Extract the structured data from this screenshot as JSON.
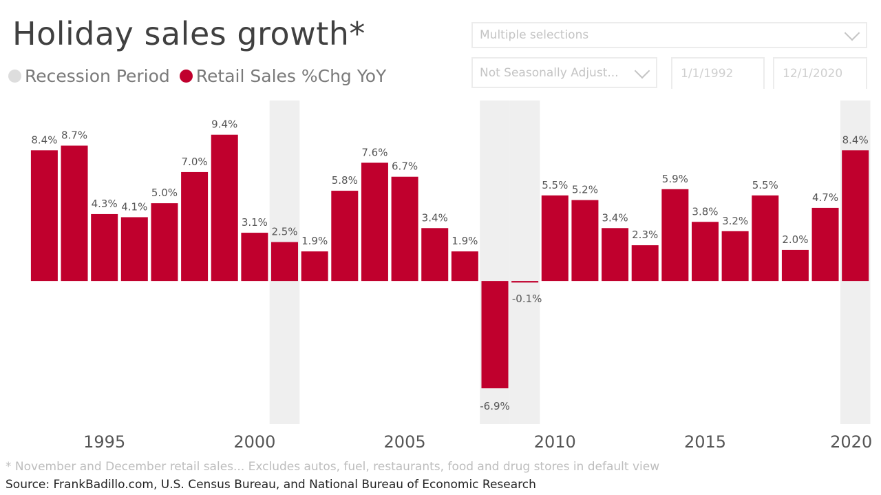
{
  "title": "Holiday sales growth*",
  "legend": {
    "recession_label": "Recession Period",
    "sales_label": "Retail Sales %Chg YoY"
  },
  "colors": {
    "bar": "#c0002d",
    "recession": "#efefef",
    "recession_dot": "#dddddd",
    "text": "#555555"
  },
  "slicers": {
    "category": "Multiple selections",
    "adjustment": "Not Seasonally Adjust...",
    "start_date": "1/1/1992",
    "end_date": "12/1/2020"
  },
  "footnote": "* November and December retail sales... Excludes autos, fuel, restaurants, food and drug stores in default view",
  "source": "Source: FrankBadillo.com, U.S. Census Bureau, and National Bureau of Economic Research",
  "chart_data": {
    "type": "bar",
    "title": "Holiday sales growth*",
    "ylabel": "Retail Sales %Chg YoY",
    "x": [
      1993,
      1994,
      1995,
      1996,
      1997,
      1998,
      1999,
      2000,
      2001,
      2002,
      2003,
      2004,
      2005,
      2006,
      2007,
      2008,
      2009,
      2010,
      2011,
      2012,
      2013,
      2014,
      2015,
      2016,
      2017,
      2018,
      2019,
      2020
    ],
    "values": [
      8.4,
      8.7,
      4.3,
      4.1,
      5.0,
      7.0,
      9.4,
      3.1,
      2.5,
      1.9,
      5.8,
      7.6,
      6.7,
      3.4,
      1.9,
      -6.9,
      -0.1,
      5.5,
      5.2,
      3.4,
      2.3,
      5.9,
      3.8,
      3.2,
      5.5,
      2.0,
      4.7,
      8.4
    ],
    "labels": [
      "8.4%",
      "8.7%",
      "4.3%",
      "4.1%",
      "5.0%",
      "7.0%",
      "9.4%",
      "3.1%",
      "2.5%",
      "1.9%",
      "5.8%",
      "7.6%",
      "6.7%",
      "3.4%",
      "1.9%",
      "-6.9%",
      "-0.1%",
      "5.5%",
      "5.2%",
      "3.4%",
      "2.3%",
      "5.9%",
      "3.8%",
      "3.2%",
      "5.5%",
      "2.0%",
      "4.7%",
      "8.4%"
    ],
    "recession_years": [
      2001,
      2008,
      2009,
      2020
    ],
    "xticks": [
      "1995",
      "2000",
      "2005",
      "2010",
      "2015",
      "2020"
    ],
    "xtick_values": [
      1995,
      2000,
      2005,
      2010,
      2015,
      2020
    ],
    "ylim": [
      -9.2,
      11.6
    ],
    "grid": false
  }
}
